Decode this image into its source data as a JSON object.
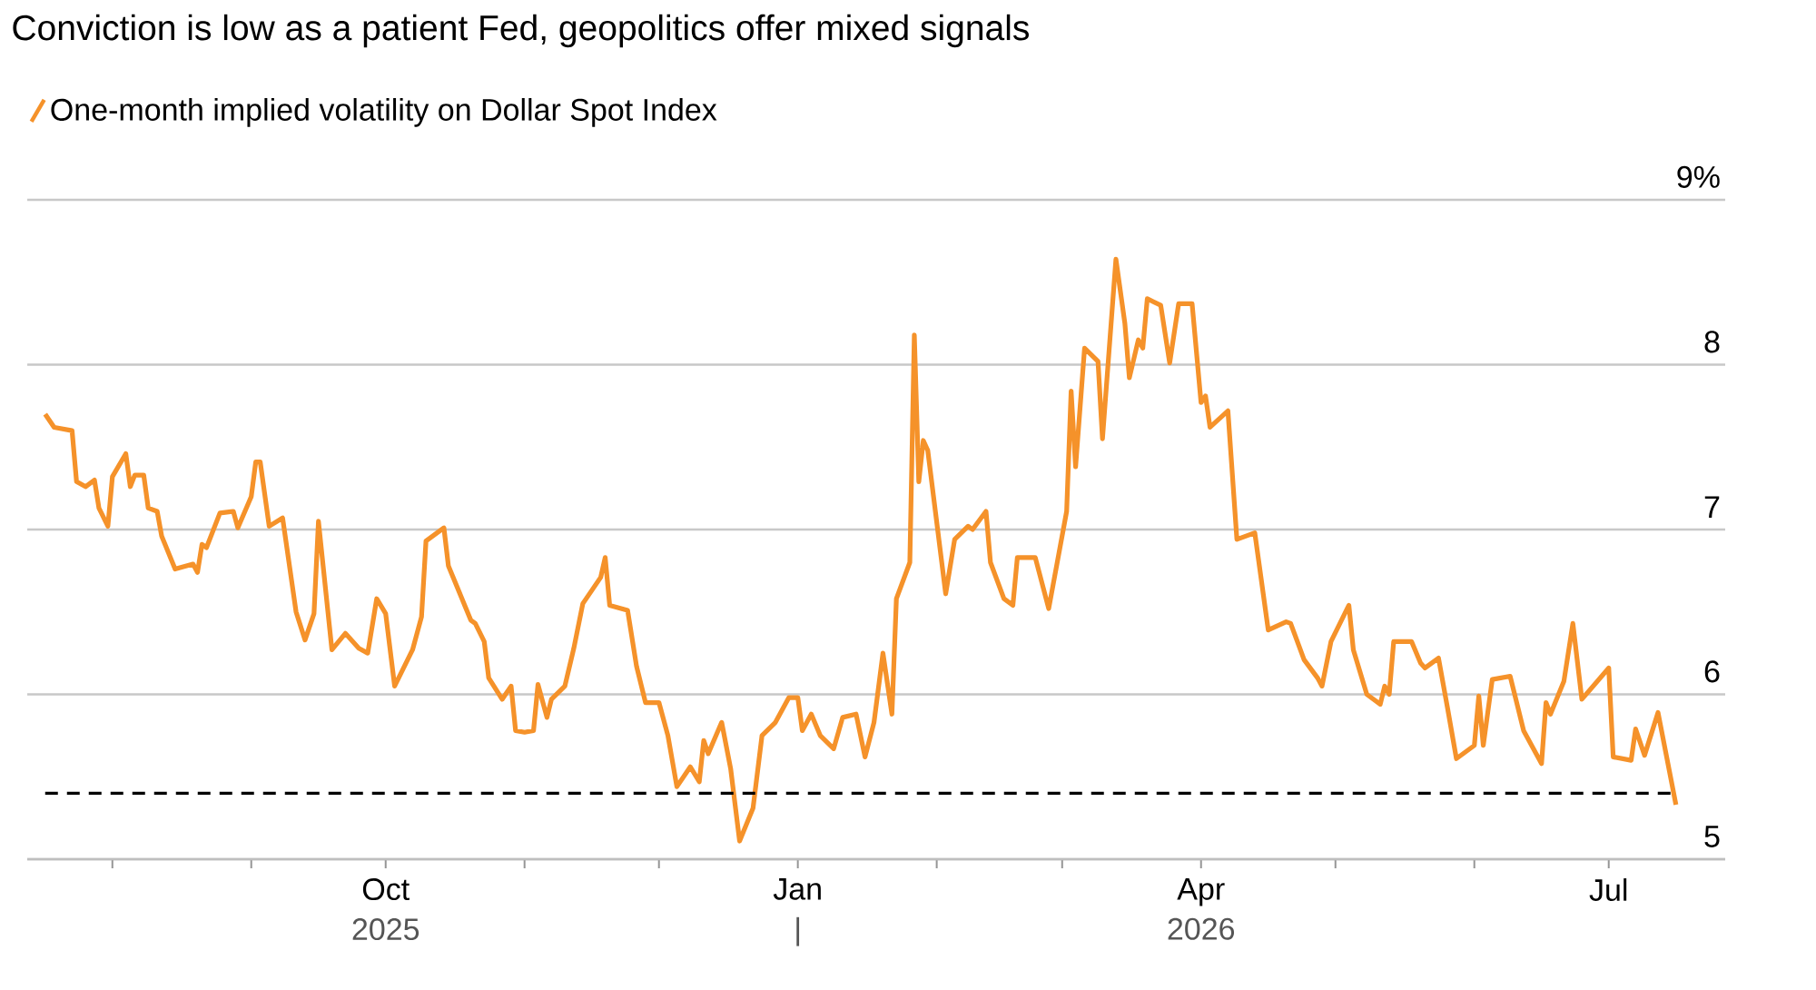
{
  "chart_data": {
    "type": "line",
    "title": "Conviction is low as a patient Fed, geopolitics offer mixed signals",
    "x": [
      "2025-07-17",
      "2025-07-19",
      "2025-07-23",
      "2025-07-24",
      "2025-07-26",
      "2025-07-28",
      "2025-07-29",
      "2025-07-31",
      "2025-08-01",
      "2025-08-04",
      "2025-08-05",
      "2025-08-06",
      "2025-08-08",
      "2025-08-09",
      "2025-08-11",
      "2025-08-12",
      "2025-08-15",
      "2025-08-19",
      "2025-08-20",
      "2025-08-21",
      "2025-08-22",
      "2025-08-25",
      "2025-08-28",
      "2025-08-29",
      "2025-09-01",
      "2025-09-02",
      "2025-09-03",
      "2025-09-05",
      "2025-09-08",
      "2025-09-11",
      "2025-09-13",
      "2025-09-15",
      "2025-09-16",
      "2025-09-19",
      "2025-09-22",
      "2025-09-25",
      "2025-09-27",
      "2025-09-29",
      "2025-10-01",
      "2025-10-03",
      "2025-10-07",
      "2025-10-09",
      "2025-10-10",
      "2025-10-14",
      "2025-10-15",
      "2025-10-20",
      "2025-10-21",
      "2025-10-23",
      "2025-10-24",
      "2025-10-27",
      "2025-10-29",
      "2025-10-30",
      "2025-11-01",
      "2025-11-03",
      "2025-11-04",
      "2025-11-06",
      "2025-11-07",
      "2025-11-10",
      "2025-11-12",
      "2025-11-14",
      "2025-11-18",
      "2025-11-19",
      "2025-11-20",
      "2025-11-24",
      "2025-11-26",
      "2025-11-28",
      "2025-12-01",
      "2025-12-03",
      "2025-12-05",
      "2025-12-08",
      "2025-12-10",
      "2025-12-11",
      "2025-12-12",
      "2025-12-15",
      "2025-12-17",
      "2025-12-19",
      "2025-12-22",
      "2025-12-24",
      "2025-12-27",
      "2025-12-30",
      "2026-01-01",
      "2026-01-02",
      "2026-01-04",
      "2026-01-06",
      "2026-01-09",
      "2026-01-11",
      "2026-01-14",
      "2026-01-16",
      "2026-01-18",
      "2026-01-20",
      "2026-01-22",
      "2026-01-23",
      "2026-01-26",
      "2026-01-27",
      "2026-01-28",
      "2026-01-29",
      "2026-01-30",
      "2026-02-03",
      "2026-02-05",
      "2026-02-08",
      "2026-02-09",
      "2026-02-12",
      "2026-02-13",
      "2026-02-16",
      "2026-02-18",
      "2026-02-19",
      "2026-02-23",
      "2026-02-26",
      "2026-03-02",
      "2026-03-03",
      "2026-03-04",
      "2026-03-06",
      "2026-03-09",
      "2026-03-10",
      "2026-03-13",
      "2026-03-15",
      "2026-03-16",
      "2026-03-18",
      "2026-03-19",
      "2026-03-20",
      "2026-03-23",
      "2026-03-25",
      "2026-03-27",
      "2026-03-30",
      "2026-04-01",
      "2026-04-02",
      "2026-04-03",
      "2026-04-07",
      "2026-04-09",
      "2026-04-13",
      "2026-04-16",
      "2026-04-20",
      "2026-04-21",
      "2026-04-24",
      "2026-04-27",
      "2026-04-28",
      "2026-04-30",
      "2026-05-04",
      "2026-05-05",
      "2026-05-08",
      "2026-05-11",
      "2026-05-12",
      "2026-05-13",
      "2026-05-14",
      "2026-05-18",
      "2026-05-20",
      "2026-05-21",
      "2026-05-24",
      "2026-05-26",
      "2026-05-28",
      "2026-06-01",
      "2026-06-02",
      "2026-06-03",
      "2026-06-05",
      "2026-06-09",
      "2026-06-12",
      "2026-06-16",
      "2026-06-17",
      "2026-06-18",
      "2026-06-21",
      "2026-06-23",
      "2026-06-25",
      "2026-07-01",
      "2026-07-02",
      "2026-07-06",
      "2026-07-07",
      "2026-07-09",
      "2026-07-12",
      "2026-07-16"
    ],
    "series": [
      {
        "name": "One-month implied volatility on Dollar Spot Index",
        "color": "#f5922a",
        "values": [
          7.7,
          7.62,
          7.6,
          7.29,
          7.26,
          7.3,
          7.13,
          7.02,
          7.32,
          7.46,
          7.26,
          7.33,
          7.33,
          7.13,
          7.11,
          6.96,
          6.76,
          6.79,
          6.74,
          6.91,
          6.89,
          7.1,
          7.11,
          7.01,
          7.2,
          7.41,
          7.41,
          7.02,
          7.07,
          6.5,
          6.33,
          6.49,
          7.05,
          6.27,
          6.37,
          6.28,
          6.25,
          6.58,
          6.49,
          6.05,
          6.27,
          6.47,
          6.93,
          7.01,
          6.78,
          6.45,
          6.43,
          6.32,
          6.1,
          5.97,
          6.05,
          5.78,
          5.77,
          5.78,
          6.06,
          5.86,
          5.97,
          6.05,
          6.28,
          6.55,
          6.71,
          6.83,
          6.54,
          6.51,
          6.17,
          5.95,
          5.95,
          5.75,
          5.44,
          5.56,
          5.47,
          5.72,
          5.64,
          5.83,
          5.55,
          5.11,
          5.31,
          5.75,
          5.83,
          5.98,
          5.98,
          5.78,
          5.88,
          5.75,
          5.67,
          5.86,
          5.88,
          5.62,
          5.83,
          6.25,
          5.88,
          6.58,
          6.8,
          8.18,
          7.29,
          7.54,
          7.48,
          6.61,
          6.94,
          7.02,
          7.0,
          7.11,
          6.8,
          6.58,
          6.54,
          6.83,
          6.83,
          6.52,
          7.11,
          7.84,
          7.38,
          8.1,
          8.02,
          7.55,
          8.64,
          8.25,
          7.92,
          8.15,
          8.1,
          8.4,
          8.36,
          8.01,
          8.37,
          8.37,
          7.77,
          7.81,
          7.62,
          7.72,
          6.94,
          6.98,
          6.39,
          6.44,
          6.43,
          6.21,
          6.1,
          6.05,
          6.32,
          6.54,
          6.27,
          6.0,
          5.94,
          6.05,
          6.0,
          6.32,
          6.32,
          6.19,
          6.16,
          6.22,
          5.92,
          5.61,
          5.69,
          5.99,
          5.69,
          6.09,
          6.11,
          5.78,
          5.58,
          5.95,
          5.88,
          6.08,
          6.43,
          5.97,
          6.16,
          5.62,
          5.6,
          5.79,
          5.63,
          5.89,
          5.33
        ]
      }
    ],
    "xlim": [
      "2025-07-13",
      "2026-07-27"
    ],
    "xticks": [
      {
        "value": "2025-08-01",
        "label": null
      },
      {
        "value": "2025-09-01",
        "label": null
      },
      {
        "value": "2025-10-01",
        "label": "Oct"
      },
      {
        "value": "2025-11-01",
        "label": null
      },
      {
        "value": "2025-12-01",
        "label": null
      },
      {
        "value": "2026-01-01",
        "label": "Jan"
      },
      {
        "value": "2026-02-01",
        "label": null
      },
      {
        "value": "2026-03-01",
        "label": null
      },
      {
        "value": "2026-04-01",
        "label": "Apr"
      },
      {
        "value": "2026-05-01",
        "label": null
      },
      {
        "value": "2026-06-01",
        "label": null
      },
      {
        "value": "2026-07-01",
        "label": "Jul"
      }
    ],
    "annotations": [
      "2025",
      "|",
      "2026"
    ],
    "ylim": [
      5,
      9
    ],
    "yticks": [
      5,
      6,
      7,
      8,
      {
        "value": 9,
        "label": "9%"
      }
    ],
    "ref_lines": [
      {
        "axis": "y",
        "value": 5.4,
        "color": "#000000",
        "line_style": "dashed"
      }
    ],
    "grid": "y",
    "legend": "top left"
  }
}
